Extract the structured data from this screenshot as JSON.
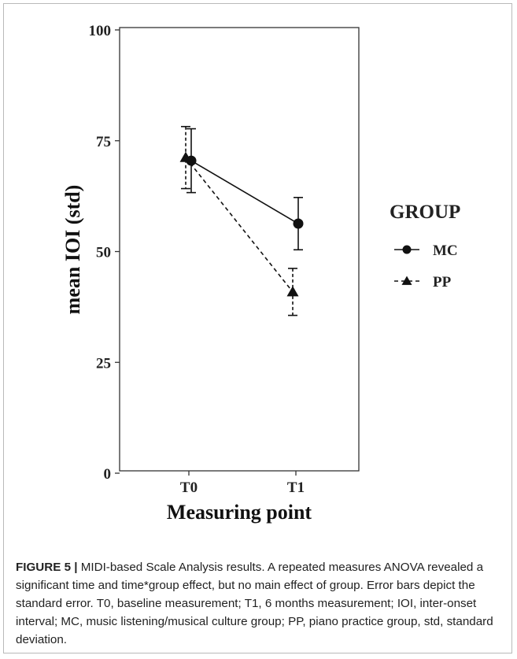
{
  "chart_data": {
    "type": "line",
    "categories": [
      "T0",
      "T1"
    ],
    "xlabel": "Measuring point",
    "ylabel": "mean IOI (std)",
    "ylim": [
      0,
      100
    ],
    "yticks": [
      0,
      25,
      50,
      75,
      100
    ],
    "grid": false,
    "legend": {
      "title": "GROUP",
      "position": "right"
    },
    "series": [
      {
        "name": "MC",
        "marker": "circle",
        "line": "solid",
        "values": [
          70.5,
          56.3
        ],
        "error": [
          7.2,
          5.9
        ]
      },
      {
        "name": "PP",
        "marker": "triangle",
        "line": "dashed",
        "values": [
          71.2,
          40.9
        ],
        "error": [
          7.0,
          5.3
        ]
      }
    ]
  },
  "caption": {
    "lead": "FIGURE 5 |",
    "text": " MIDI-based Scale Analysis results. A repeated measures ANOVA revealed a significant time and time*group effect, but no main effect of group. Error bars depict the standard error. T0, baseline measurement; T1, 6 months measurement; IOI, inter-onset interval; MC, music listening/musical culture group; PP, piano practice group, std, standard deviation."
  },
  "colors": {
    "ink": "#111111",
    "frame": "#b9b9b9"
  }
}
